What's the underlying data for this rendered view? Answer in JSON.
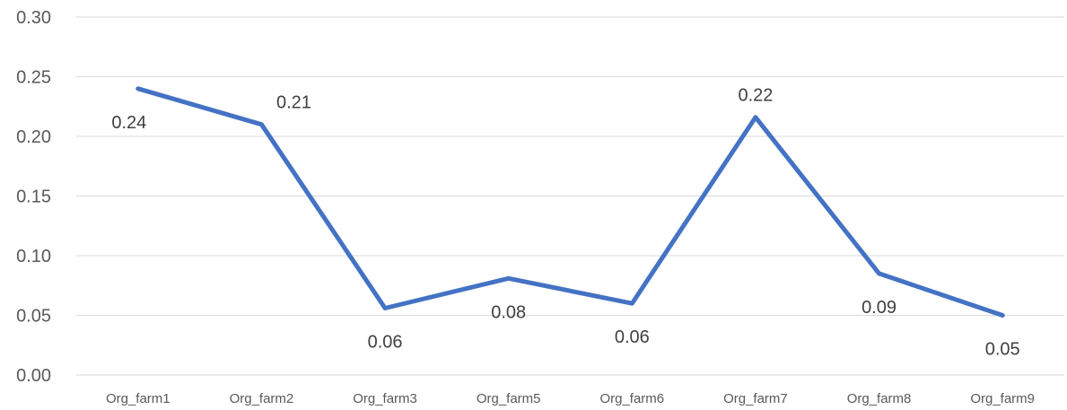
{
  "chart_data": {
    "type": "line",
    "title": "",
    "xlabel": "",
    "ylabel": "",
    "categories": [
      "Org_farm1",
      "Org_farm2",
      "Org_farm3",
      "Org_farm5",
      "Org_farm6",
      "Org_farm7",
      "Org_farm8",
      "Org_farm9"
    ],
    "series": [
      {
        "values": [
          0.24,
          0.21,
          0.056,
          0.081,
          0.06,
          0.216,
          0.085,
          0.05
        ],
        "data_labels": [
          "0.24",
          "0.21",
          "0.06",
          "0.08",
          "0.06",
          "0.22",
          "0.09",
          "0.05"
        ],
        "color": "#4472c4"
      }
    ],
    "ylim": [
      0,
      0.3
    ],
    "yticks": [
      "0.00",
      "0.05",
      "0.10",
      "0.15",
      "0.20",
      "0.25",
      "0.30"
    ],
    "grid": true,
    "legend": "none"
  }
}
